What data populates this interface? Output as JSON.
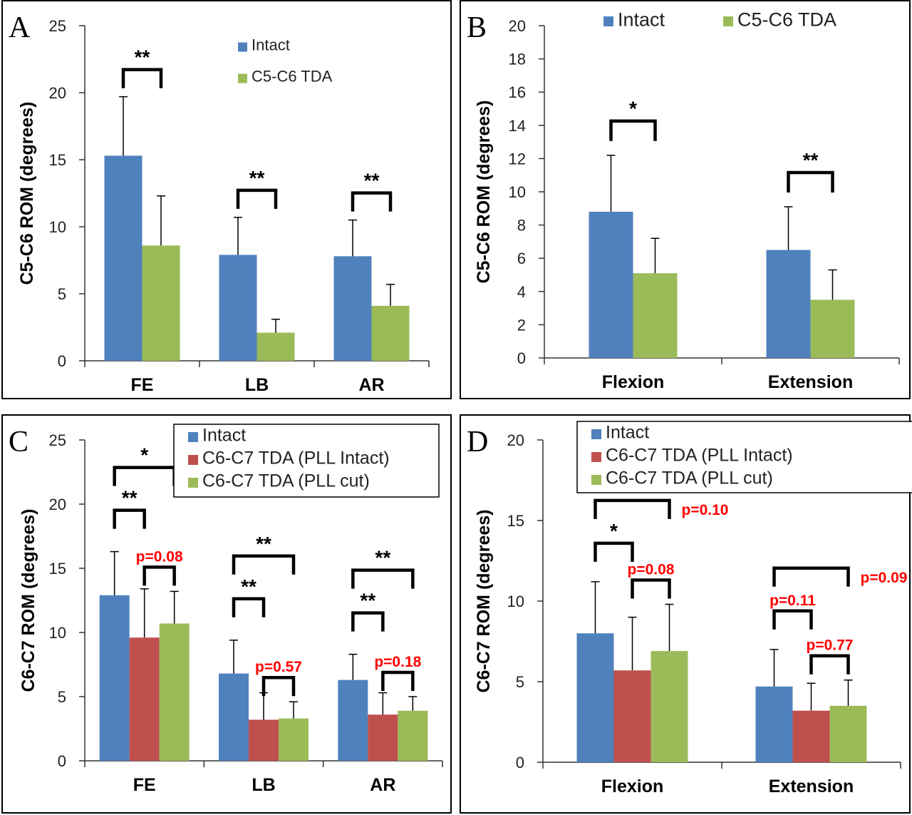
{
  "colors": {
    "intact": "#4f81bd",
    "pll_intact": "#c0504d",
    "tda": "#9bbb59",
    "pvalue": "#ff0000"
  },
  "chart_data": [
    {
      "panel": "A",
      "type": "bar",
      "ylabel": "C5-C6 ROM (degrees)",
      "ylim": [
        0,
        25
      ],
      "yticks": [
        0,
        5,
        10,
        15,
        20,
        25
      ],
      "categories": [
        "FE",
        "LB",
        "AR"
      ],
      "legend_position": "top-right",
      "series": [
        {
          "name": "Intact",
          "values": [
            15.3,
            7.9,
            7.8
          ],
          "errors": [
            4.4,
            2.8,
            2.7
          ]
        },
        {
          "name": "C5-C6 TDA",
          "values": [
            8.6,
            2.1,
            4.1
          ],
          "errors": [
            3.7,
            1.0,
            1.6
          ]
        }
      ],
      "annotations": [
        {
          "label": "**",
          "category": 0,
          "from": 0,
          "to": 1,
          "level": 0
        },
        {
          "label": "**",
          "category": 1,
          "from": 0,
          "to": 1,
          "level": 0
        },
        {
          "label": "**",
          "category": 2,
          "from": 0,
          "to": 1,
          "level": 0
        }
      ]
    },
    {
      "panel": "B",
      "type": "bar",
      "ylabel": "C5-C6 ROM (degrees)",
      "ylim": [
        0,
        20
      ],
      "yticks": [
        0,
        2,
        4,
        6,
        8,
        10,
        12,
        14,
        16,
        18,
        20
      ],
      "categories": [
        "Flexion",
        "Extension"
      ],
      "legend_position": "top",
      "series": [
        {
          "name": "Intact",
          "values": [
            8.8,
            6.5
          ],
          "errors": [
            3.4,
            2.6
          ]
        },
        {
          "name": "C5-C6 TDA",
          "values": [
            5.1,
            3.5
          ],
          "errors": [
            2.1,
            1.8
          ]
        }
      ],
      "annotations": [
        {
          "label": "*",
          "category": 0,
          "from": 0,
          "to": 1,
          "level": 0
        },
        {
          "label": "**",
          "category": 1,
          "from": 0,
          "to": 1,
          "level": 0
        }
      ]
    },
    {
      "panel": "C",
      "type": "bar",
      "ylabel": "C6-C7 ROM (degrees)",
      "ylim": [
        0,
        25
      ],
      "yticks": [
        0,
        5,
        10,
        15,
        20,
        25
      ],
      "categories": [
        "FE",
        "LB",
        "AR"
      ],
      "legend_position": "top-right",
      "series": [
        {
          "name": "Intact",
          "values": [
            12.9,
            6.8,
            6.3
          ],
          "errors": [
            3.4,
            2.6,
            2.0
          ]
        },
        {
          "name": "C6-C7 TDA (PLL Intact)",
          "values": [
            9.6,
            3.2,
            3.6
          ],
          "errors": [
            3.8,
            2.1,
            1.7
          ]
        },
        {
          "name": "C6-C7 TDA (PLL cut)",
          "values": [
            10.7,
            3.3,
            3.9
          ],
          "errors": [
            2.5,
            1.3,
            1.1
          ]
        }
      ],
      "annotations": [
        {
          "label": "**",
          "category": 0,
          "from": 0,
          "to": 1,
          "level": 0
        },
        {
          "label": "*",
          "category": 0,
          "from": 0,
          "to": 2,
          "level": 1
        },
        {
          "label": "p=0.08",
          "category": 0,
          "from": 1,
          "to": 2,
          "level": -1,
          "red": true
        },
        {
          "label": "**",
          "category": 1,
          "from": 0,
          "to": 1,
          "level": 0
        },
        {
          "label": "**",
          "category": 1,
          "from": 0,
          "to": 2,
          "level": 1
        },
        {
          "label": "p=0.57",
          "category": 1,
          "from": 1,
          "to": 2,
          "level": -1,
          "red": true
        },
        {
          "label": "**",
          "category": 2,
          "from": 0,
          "to": 1,
          "level": 0
        },
        {
          "label": "**",
          "category": 2,
          "from": 0,
          "to": 2,
          "level": 1
        },
        {
          "label": "p=0.18",
          "category": 2,
          "from": 1,
          "to": 2,
          "level": -1,
          "red": true
        }
      ]
    },
    {
      "panel": "D",
      "type": "bar",
      "ylabel": "C6-C7 ROM (degrees)",
      "ylim": [
        0,
        20
      ],
      "yticks": [
        0,
        5,
        10,
        15,
        20
      ],
      "categories": [
        "Flexion",
        "Extension"
      ],
      "legend_position": "top",
      "series": [
        {
          "name": "Intact",
          "values": [
            8.0,
            4.7
          ],
          "errors": [
            3.2,
            2.3
          ]
        },
        {
          "name": "C6-C7 TDA (PLL Intact)",
          "values": [
            5.7,
            3.2
          ],
          "errors": [
            3.3,
            1.7
          ]
        },
        {
          "name": "C6-C7 TDA (PLL cut)",
          "values": [
            6.9,
            3.5
          ],
          "errors": [
            2.9,
            1.6
          ]
        }
      ],
      "annotations": [
        {
          "label": "*",
          "category": 0,
          "from": 0,
          "to": 1,
          "level": 0
        },
        {
          "label": "p=0.10",
          "category": 0,
          "from": 0,
          "to": 2,
          "level": 1,
          "red": true
        },
        {
          "label": "p=0.08",
          "category": 0,
          "from": 1,
          "to": 2,
          "level": -1,
          "red": true
        },
        {
          "label": "p=0.11",
          "category": 1,
          "from": 0,
          "to": 1,
          "level": 0,
          "red": true
        },
        {
          "label": "p=0.09",
          "category": 1,
          "from": 0,
          "to": 2,
          "level": 1,
          "red": true
        },
        {
          "label": "p=0.77",
          "category": 1,
          "from": 1,
          "to": 2,
          "level": -1,
          "red": true
        }
      ]
    }
  ]
}
